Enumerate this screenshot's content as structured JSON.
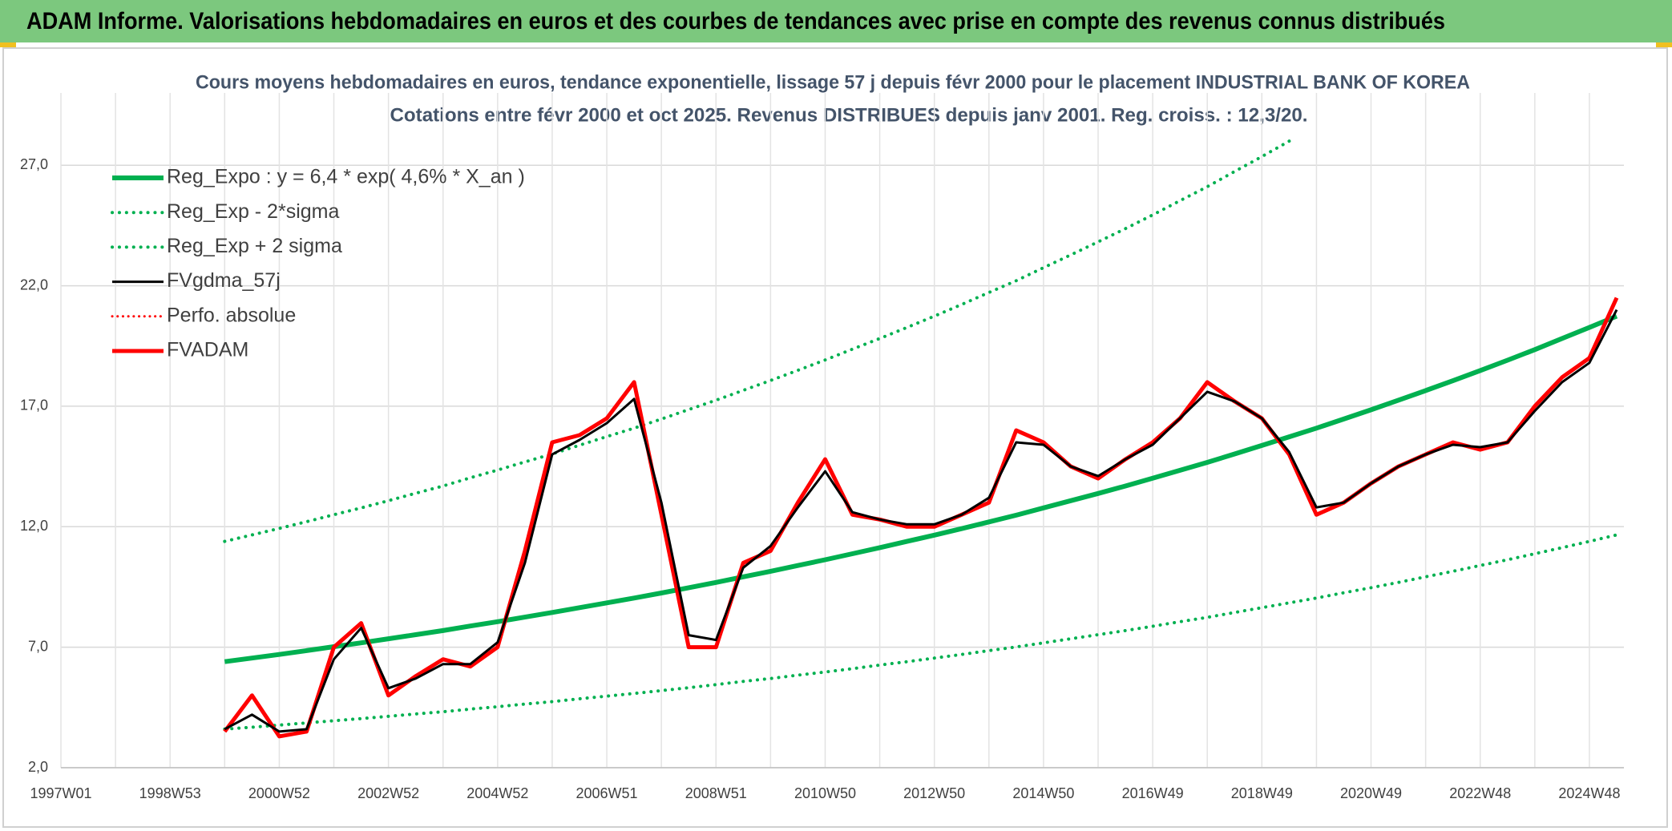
{
  "header": {
    "title": "ADAM Informe. Valorisations hebdomadaires en euros et des courbes de tendances avec prise en compte des revenus connus distribués"
  },
  "chart_data": {
    "type": "line",
    "title": "Cours moyens hebdomadaires en euros, tendance exponentielle, lissage 57 j depuis févr 2000 pour le placement INDUSTRIAL BANK OF KOREA",
    "subtitle": "Cotations entre févr 2000 et oct 2025. Revenus DISTRIBUES depuis janv 2001. Reg. croiss. : 12,3/20.",
    "categories": [
      "1997W01",
      null,
      null,
      null,
      "1998W53",
      null,
      null,
      null,
      "2000W52",
      null,
      null,
      null,
      "2002W52",
      null,
      null,
      null,
      "2004W52",
      null,
      null,
      null,
      "2006W51",
      null,
      null,
      null,
      "2008W51",
      null,
      null,
      null,
      "2010W50",
      null,
      null,
      null,
      "2012W50",
      null,
      null,
      null,
      "2014W50",
      null,
      null,
      null,
      "2016W49",
      null,
      null,
      null,
      "2018W49",
      null,
      null,
      null,
      "2020W49",
      null,
      null,
      null,
      "2022W48",
      null,
      null,
      null,
      "2024W48",
      null
    ],
    "ylim": [
      2,
      30
    ],
    "yticks": [
      {
        "value": 2,
        "label": "2,0"
      },
      {
        "value": 7,
        "label": "7,0"
      },
      {
        "value": 12,
        "label": "12,0"
      },
      {
        "value": 17,
        "label": "17,0"
      },
      {
        "value": 22,
        "label": "22,0"
      },
      {
        "value": 27,
        "label": "27,0"
      }
    ],
    "grid": true,
    "legend": "top-left",
    "series": [
      {
        "name": "Reg_Expo : y = 6,4 * exp( 4,6% *  X_an )",
        "color": "#00b050",
        "style": "solid",
        "width": 6,
        "values": [
          null,
          null,
          null,
          null,
          null,
          null,
          6.4,
          6.55,
          6.7,
          6.86,
          7.02,
          7.18,
          7.35,
          7.52,
          7.69,
          7.88,
          8.06,
          8.25,
          8.44,
          8.64,
          8.84,
          9.04,
          9.25,
          9.47,
          9.69,
          9.92,
          10.15,
          10.39,
          10.63,
          10.88,
          11.13,
          11.39,
          11.65,
          11.92,
          12.2,
          12.48,
          12.78,
          13.08,
          13.38,
          13.69,
          14.01,
          14.34,
          14.67,
          15.02,
          15.37,
          15.73,
          16.09,
          16.47,
          16.85,
          17.25,
          17.65,
          18.06,
          18.48,
          18.91,
          19.35,
          19.81,
          20.27,
          20.74
        ]
      },
      {
        "name": "Reg_Exp - 2*sigma",
        "color": "#00b050",
        "style": "dotted",
        "width": 4,
        "values": [
          null,
          null,
          null,
          null,
          null,
          null,
          3.6,
          3.68,
          3.77,
          3.86,
          3.95,
          4.04,
          4.13,
          4.23,
          4.32,
          4.43,
          4.53,
          4.64,
          4.74,
          4.86,
          4.97,
          5.08,
          5.2,
          5.32,
          5.45,
          5.58,
          5.7,
          5.84,
          5.97,
          6.11,
          6.26,
          6.4,
          6.55,
          6.7,
          6.86,
          7.01,
          7.18,
          7.35,
          7.52,
          7.69,
          7.87,
          8.06,
          8.24,
          8.44,
          8.64,
          8.84,
          9.04,
          9.26,
          9.47,
          9.69,
          9.92,
          10.15,
          10.39,
          10.63,
          10.88,
          11.13,
          11.39,
          11.66
        ]
      },
      {
        "name": "Reg_Exp + 2 sigma",
        "color": "#00b050",
        "style": "dotted",
        "width": 4,
        "values": [
          null,
          null,
          null,
          null,
          null,
          null,
          11.39,
          11.66,
          11.93,
          12.21,
          12.5,
          12.78,
          13.08,
          13.39,
          13.69,
          14.03,
          14.35,
          14.69,
          15.02,
          15.38,
          15.74,
          16.09,
          16.47,
          16.86,
          17.25,
          17.66,
          18.07,
          18.49,
          18.92,
          19.37,
          19.81,
          20.27,
          20.74,
          21.22,
          21.72,
          22.21,
          22.75,
          23.28,
          23.82,
          24.37,
          24.94,
          25.53,
          26.11,
          26.74,
          27.36,
          28.0,
          null,
          null,
          null,
          null,
          null,
          null,
          null,
          null,
          null,
          null,
          null,
          null
        ]
      },
      {
        "name": "FVgdma_57j",
        "color": "#000000",
        "style": "solid",
        "width": 3,
        "values": [
          null,
          null,
          null,
          null,
          null,
          null,
          3.6,
          4.2,
          3.5,
          3.6,
          6.5,
          7.8,
          5.3,
          5.7,
          6.3,
          6.3,
          7.2,
          10.5,
          15.0,
          15.6,
          16.3,
          17.3,
          13.0,
          7.5,
          7.3,
          10.3,
          11.2,
          12.8,
          14.3,
          12.6,
          12.3,
          12.1,
          12.1,
          12.5,
          13.2,
          15.5,
          15.4,
          14.5,
          14.1,
          14.8,
          15.4,
          16.5,
          17.6,
          17.2,
          16.5,
          15.1,
          12.8,
          13.0,
          13.8,
          14.5,
          15.0,
          15.4,
          15.3,
          15.5,
          16.8,
          18.0,
          18.8,
          21.0
        ]
      },
      {
        "name": "Perfo. absolue",
        "color": "#ff0000",
        "style": "dotted",
        "width": 3,
        "values": [
          null,
          null,
          null,
          null,
          null,
          null,
          null,
          null,
          null,
          null,
          null,
          null,
          null,
          null,
          null,
          null,
          null,
          null,
          null,
          null,
          null,
          null,
          null,
          null,
          null,
          null,
          null,
          null,
          null,
          null,
          null,
          null,
          null,
          null,
          null,
          null,
          null,
          null,
          null,
          null,
          null,
          null,
          null,
          null,
          null,
          null,
          null,
          null,
          null,
          null,
          null,
          null,
          null,
          null,
          null,
          null,
          null,
          null
        ]
      },
      {
        "name": "FVADAM",
        "color": "#ff0000",
        "style": "solid",
        "width": 5,
        "values": [
          null,
          null,
          null,
          null,
          null,
          null,
          3.5,
          5.0,
          3.3,
          3.5,
          7.0,
          8.0,
          5.0,
          5.8,
          6.5,
          6.2,
          7.0,
          11.0,
          15.5,
          15.8,
          16.5,
          18.0,
          12.5,
          7.0,
          7.0,
          10.5,
          11.0,
          13.0,
          14.8,
          12.5,
          12.3,
          12.0,
          12.0,
          12.5,
          13.0,
          16.0,
          15.5,
          14.5,
          14.0,
          14.8,
          15.5,
          16.5,
          18.0,
          17.2,
          16.5,
          15.0,
          12.5,
          13.0,
          13.8,
          14.5,
          15.0,
          15.5,
          15.2,
          15.5,
          17.0,
          18.2,
          19.0,
          21.5
        ]
      }
    ]
  }
}
